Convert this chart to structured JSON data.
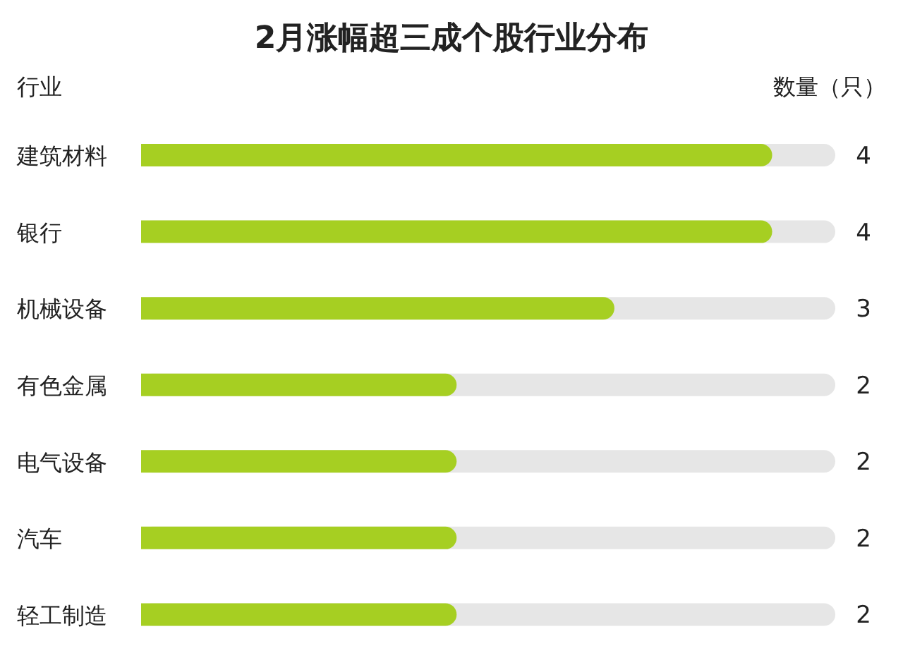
{
  "chart_data": {
    "type": "bar",
    "orientation": "horizontal",
    "title": "2月涨幅超三成个股行业分布",
    "ylabel": "行业",
    "xlabel": "数量（只）",
    "categories": [
      "建筑材料",
      "银行",
      "机械设备",
      "有色金属",
      "电气设备",
      "汽车",
      "轻工制造"
    ],
    "values": [
      4,
      4,
      3,
      2,
      2,
      2,
      2
    ],
    "color": "#a6cf22",
    "data_labels": true
  }
}
